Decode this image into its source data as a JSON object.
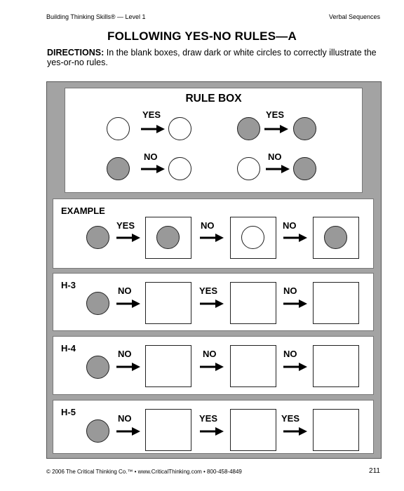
{
  "header": {
    "left": "Building Thinking Skills® — Level 1",
    "right": "Verbal Sequences"
  },
  "title": "FOLLOWING YES-NO RULES—A",
  "directions": {
    "label": "DIRECTIONS:",
    "text": " In the blank boxes, draw dark or white circles to correctly illustrate the yes-or-no rules."
  },
  "rule_box": {
    "title": "RULE BOX",
    "rules": [
      {
        "label": "YES",
        "from": "white",
        "to": "white"
      },
      {
        "label": "YES",
        "from": "dark",
        "to": "dark"
      },
      {
        "label": "NO",
        "from": "dark",
        "to": "white"
      },
      {
        "label": "NO",
        "from": "white",
        "to": "dark"
      }
    ]
  },
  "example": {
    "title": "EXAMPLE",
    "start": "dark",
    "steps": [
      {
        "label": "YES",
        "result": "dark"
      },
      {
        "label": "NO",
        "result": "white"
      },
      {
        "label": "NO",
        "result": "dark"
      }
    ]
  },
  "problems": [
    {
      "id": "H-3",
      "start": "dark",
      "steps": [
        "NO",
        "YES",
        "NO"
      ]
    },
    {
      "id": "H-4",
      "start": "dark",
      "steps": [
        "NO",
        "NO",
        "NO"
      ]
    },
    {
      "id": "H-5",
      "start": "dark",
      "steps": [
        "NO",
        "YES",
        "YES"
      ]
    }
  ],
  "footer": {
    "left": "© 2006 The Critical Thinking Co.™ • www.CriticalThinking.com • 800-458-4849",
    "page": "211"
  }
}
